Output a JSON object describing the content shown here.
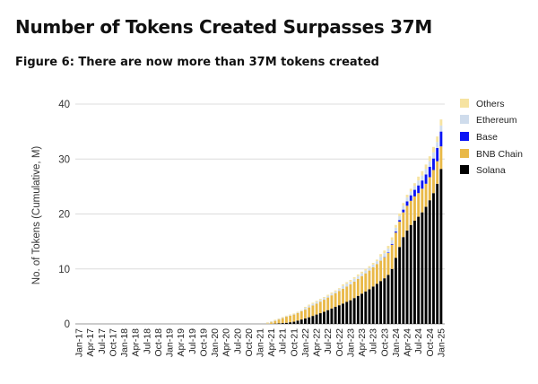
{
  "header": {
    "title": "Number of Tokens Created Surpasses 37M",
    "subtitle": "Figure 6: There are now more than 37M tokens created"
  },
  "chart_data": {
    "type": "bar",
    "stacked": true,
    "ylabel": "No. of Tokens (Cumulative, M)",
    "xlabel": "",
    "ylim": [
      0,
      40
    ],
    "yticks": [
      0,
      10,
      20,
      30,
      40
    ],
    "grid": true,
    "legend_position": "right",
    "xtick_labels": [
      "Jan-17",
      "Apr-17",
      "Jul-17",
      "Oct-17",
      "Jan-18",
      "Apr-18",
      "Jul-18",
      "Oct-18",
      "Jan-19",
      "Apr-19",
      "Jul-19",
      "Oct-19",
      "Jan-20",
      "Apr-20",
      "Jul-20",
      "Oct-20",
      "Jan-21",
      "Apr-21",
      "Jul-21",
      "Oct-21",
      "Jan-22",
      "Apr-22",
      "Jul-22",
      "Oct-22",
      "Jan-23",
      "Apr-23",
      "Jul-23",
      "Oct-23",
      "Jan-24",
      "Apr-24",
      "Jul-24",
      "Oct-24",
      "Jan-25"
    ],
    "categories": [
      "Jan-17",
      "Feb-17",
      "Mar-17",
      "Apr-17",
      "May-17",
      "Jun-17",
      "Jul-17",
      "Aug-17",
      "Sep-17",
      "Oct-17",
      "Nov-17",
      "Dec-17",
      "Jan-18",
      "Feb-18",
      "Mar-18",
      "Apr-18",
      "May-18",
      "Jun-18",
      "Jul-18",
      "Aug-18",
      "Sep-18",
      "Oct-18",
      "Nov-18",
      "Dec-18",
      "Jan-19",
      "Feb-19",
      "Mar-19",
      "Apr-19",
      "May-19",
      "Jun-19",
      "Jul-19",
      "Aug-19",
      "Sep-19",
      "Oct-19",
      "Nov-19",
      "Dec-19",
      "Jan-20",
      "Feb-20",
      "Mar-20",
      "Apr-20",
      "May-20",
      "Jun-20",
      "Jul-20",
      "Aug-20",
      "Sep-20",
      "Oct-20",
      "Nov-20",
      "Dec-20",
      "Jan-21",
      "Feb-21",
      "Mar-21",
      "Apr-21",
      "May-21",
      "Jun-21",
      "Jul-21",
      "Aug-21",
      "Sep-21",
      "Oct-21",
      "Nov-21",
      "Dec-21",
      "Jan-22",
      "Feb-22",
      "Mar-22",
      "Apr-22",
      "May-22",
      "Jun-22",
      "Jul-22",
      "Aug-22",
      "Sep-22",
      "Oct-22",
      "Nov-22",
      "Dec-22",
      "Jan-23",
      "Feb-23",
      "Mar-23",
      "Apr-23",
      "May-23",
      "Jun-23",
      "Jul-23",
      "Aug-23",
      "Sep-23",
      "Oct-23",
      "Nov-23",
      "Dec-23",
      "Jan-24",
      "Feb-24",
      "Mar-24",
      "Apr-24",
      "May-24",
      "Jun-24",
      "Jul-24",
      "Aug-24",
      "Sep-24",
      "Oct-24",
      "Nov-24",
      "Dec-24",
      "Jan-25"
    ],
    "series": [
      {
        "name": "Solana",
        "color": "#000000",
        "values": [
          0,
          0,
          0,
          0,
          0,
          0,
          0,
          0,
          0,
          0,
          0,
          0,
          0,
          0,
          0,
          0,
          0,
          0,
          0,
          0,
          0,
          0,
          0,
          0,
          0,
          0,
          0,
          0,
          0,
          0,
          0,
          0,
          0,
          0,
          0,
          0,
          0,
          0,
          0,
          0,
          0,
          0,
          0,
          0,
          0,
          0,
          0,
          0,
          0,
          0,
          0,
          0,
          0.05,
          0.1,
          0.15,
          0.2,
          0.3,
          0.4,
          0.6,
          0.8,
          1.0,
          1.2,
          1.45,
          1.7,
          1.95,
          2.2,
          2.5,
          2.8,
          3.1,
          3.4,
          3.7,
          4.0,
          4.3,
          4.7,
          5.1,
          5.5,
          5.9,
          6.3,
          6.8,
          7.3,
          7.8,
          8.3,
          8.9,
          10.0,
          12.0,
          14.0,
          15.8,
          17.0,
          18.0,
          18.8,
          19.5,
          20.3,
          21.3,
          22.5,
          23.8,
          25.5,
          28.2
        ]
      },
      {
        "name": "BNB Chain",
        "color": "#e9b948",
        "values": [
          0,
          0,
          0,
          0,
          0,
          0,
          0,
          0,
          0,
          0,
          0,
          0,
          0,
          0,
          0,
          0,
          0,
          0,
          0,
          0,
          0,
          0,
          0,
          0,
          0,
          0,
          0,
          0,
          0,
          0,
          0,
          0,
          0,
          0,
          0,
          0,
          0,
          0,
          0,
          0,
          0,
          0,
          0,
          0,
          0,
          0,
          0,
          0,
          0,
          0,
          0.1,
          0.3,
          0.5,
          0.7,
          0.9,
          1.1,
          1.2,
          1.3,
          1.4,
          1.5,
          1.6,
          1.8,
          1.9,
          2.0,
          2.1,
          2.2,
          2.3,
          2.4,
          2.5,
          2.6,
          2.7,
          2.8,
          2.9,
          3.0,
          3.1,
          3.2,
          3.3,
          3.4,
          3.5,
          3.6,
          3.7,
          3.8,
          4.0,
          4.4,
          4.6,
          4.6,
          4.5,
          4.5,
          4.4,
          4.4,
          4.3,
          4.3,
          4.2,
          4.2,
          4.2,
          4.1,
          4.1
        ]
      },
      {
        "name": "Base",
        "color": "#0a14f5",
        "values": [
          0,
          0,
          0,
          0,
          0,
          0,
          0,
          0,
          0,
          0,
          0,
          0,
          0,
          0,
          0,
          0,
          0,
          0,
          0,
          0,
          0,
          0,
          0,
          0,
          0,
          0,
          0,
          0,
          0,
          0,
          0,
          0,
          0,
          0,
          0,
          0,
          0,
          0,
          0,
          0,
          0,
          0,
          0,
          0,
          0,
          0,
          0,
          0,
          0,
          0,
          0,
          0,
          0,
          0,
          0,
          0,
          0,
          0,
          0,
          0,
          0,
          0,
          0,
          0,
          0,
          0,
          0,
          0,
          0,
          0,
          0,
          0,
          0,
          0,
          0,
          0,
          0,
          0,
          0,
          0,
          0,
          0.05,
          0.1,
          0.15,
          0.2,
          0.3,
          0.5,
          0.8,
          1.0,
          1.2,
          1.4,
          1.5,
          1.7,
          1.9,
          2.1,
          2.4,
          2.7
        ]
      },
      {
        "name": "Ethereum",
        "color": "#cfdcec",
        "values": [
          0,
          0,
          0,
          0,
          0,
          0,
          0,
          0,
          0,
          0,
          0,
          0,
          0,
          0,
          0,
          0,
          0,
          0,
          0,
          0,
          0,
          0,
          0,
          0,
          0,
          0,
          0,
          0,
          0,
          0,
          0,
          0,
          0,
          0,
          0,
          0,
          0,
          0,
          0,
          0,
          0,
          0,
          0,
          0,
          0,
          0,
          0,
          0,
          0,
          0,
          0.1,
          0.1,
          0.1,
          0.1,
          0.1,
          0.1,
          0.1,
          0.1,
          0.1,
          0.1,
          0.3,
          0.3,
          0.3,
          0.3,
          0.3,
          0.3,
          0.3,
          0.3,
          0.3,
          0.3,
          0.5,
          0.5,
          0.5,
          0.5,
          0.5,
          0.5,
          0.5,
          0.5,
          0.5,
          0.5,
          0.7,
          0.7,
          0.7,
          0.7,
          0.7,
          0.7,
          0.7,
          0.7,
          0.7,
          0.7,
          0.9,
          0.9,
          1.0,
          1.0,
          1.1,
          1.1,
          1.1
        ]
      },
      {
        "name": "Others",
        "color": "#f6e3a1",
        "values": [
          0,
          0,
          0,
          0,
          0,
          0,
          0,
          0,
          0,
          0,
          0,
          0,
          0,
          0,
          0,
          0,
          0,
          0,
          0,
          0,
          0,
          0,
          0,
          0,
          0,
          0,
          0,
          0,
          0,
          0,
          0,
          0,
          0,
          0,
          0,
          0,
          0,
          0,
          0,
          0,
          0,
          0,
          0,
          0,
          0,
          0,
          0,
          0,
          0,
          0,
          0.1,
          0.1,
          0.1,
          0.1,
          0.1,
          0.1,
          0.1,
          0.1,
          0.1,
          0.1,
          0.2,
          0.2,
          0.2,
          0.2,
          0.2,
          0.2,
          0.2,
          0.2,
          0.2,
          0.2,
          0.3,
          0.3,
          0.3,
          0.3,
          0.3,
          0.3,
          0.3,
          0.3,
          0.3,
          0.3,
          0.5,
          0.5,
          0.5,
          0.5,
          0.5,
          0.5,
          0.5,
          0.5,
          0.5,
          0.5,
          0.7,
          0.8,
          0.8,
          0.9,
          1.0,
          1.0,
          1.1
        ]
      }
    ],
    "legend_order": [
      "Others",
      "Ethereum",
      "Base",
      "BNB Chain",
      "Solana"
    ]
  }
}
